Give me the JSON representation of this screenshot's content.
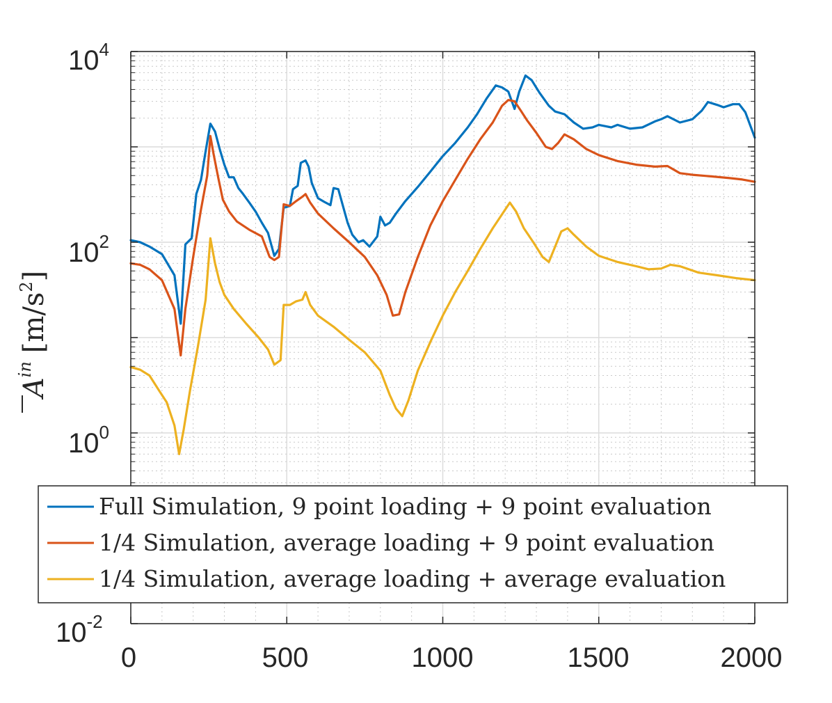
{
  "chart_data": {
    "type": "line",
    "title": "",
    "xlabel": "",
    "ylabel": {
      "symbol": "A",
      "superscript": "in",
      "unit": "[m/s",
      "unit_exponent": "2",
      "unit_close": "]"
    },
    "xlim": [
      0,
      2000
    ],
    "ylim": [
      0.01,
      10000
    ],
    "yscale": "log",
    "grid": true,
    "minor_grid": true,
    "legend_position": "bottom",
    "x_ticks": [
      {
        "value": 0,
        "label": "0"
      },
      {
        "value": 500,
        "label": "500"
      },
      {
        "value": 1000,
        "label": "1000"
      },
      {
        "value": 1500,
        "label": "1500"
      },
      {
        "value": 2000,
        "label": "2000"
      }
    ],
    "y_ticks": [
      {
        "value": 0.01,
        "base": "10",
        "exponent": "-2"
      },
      {
        "value": 1,
        "base": "10",
        "exponent": "0"
      },
      {
        "value": 100,
        "base": "10",
        "exponent": "2"
      },
      {
        "value": 10000,
        "base": "10",
        "exponent": "4"
      }
    ],
    "series": [
      {
        "name": "Full Simulation, 9 point loading + 9 point evaluation",
        "color": "#0072BD",
        "points": [
          [
            0,
            105
          ],
          [
            30,
            100
          ],
          [
            60,
            90
          ],
          [
            100,
            75
          ],
          [
            140,
            45
          ],
          [
            160,
            14
          ],
          [
            175,
            95
          ],
          [
            195,
            110
          ],
          [
            210,
            320
          ],
          [
            225,
            450
          ],
          [
            240,
            900
          ],
          [
            255,
            1750
          ],
          [
            270,
            1450
          ],
          [
            285,
            950
          ],
          [
            300,
            650
          ],
          [
            315,
            480
          ],
          [
            330,
            480
          ],
          [
            345,
            370
          ],
          [
            360,
            320
          ],
          [
            380,
            260
          ],
          [
            400,
            210
          ],
          [
            420,
            160
          ],
          [
            440,
            125
          ],
          [
            460,
            72
          ],
          [
            475,
            85
          ],
          [
            490,
            230
          ],
          [
            510,
            240
          ],
          [
            520,
            360
          ],
          [
            535,
            390
          ],
          [
            545,
            680
          ],
          [
            560,
            720
          ],
          [
            570,
            620
          ],
          [
            580,
            420
          ],
          [
            600,
            290
          ],
          [
            620,
            265
          ],
          [
            640,
            245
          ],
          [
            650,
            370
          ],
          [
            665,
            360
          ],
          [
            680,
            240
          ],
          [
            695,
            160
          ],
          [
            710,
            120
          ],
          [
            730,
            100
          ],
          [
            745,
            105
          ],
          [
            765,
            90
          ],
          [
            790,
            115
          ],
          [
            800,
            185
          ],
          [
            815,
            150
          ],
          [
            830,
            160
          ],
          [
            850,
            200
          ],
          [
            880,
            270
          ],
          [
            920,
            380
          ],
          [
            960,
            550
          ],
          [
            1000,
            800
          ],
          [
            1040,
            1100
          ],
          [
            1080,
            1600
          ],
          [
            1110,
            2200
          ],
          [
            1140,
            3200
          ],
          [
            1170,
            4400
          ],
          [
            1190,
            4200
          ],
          [
            1210,
            3800
          ],
          [
            1230,
            2500
          ],
          [
            1245,
            3800
          ],
          [
            1265,
            5600
          ],
          [
            1285,
            5000
          ],
          [
            1310,
            3700
          ],
          [
            1340,
            2700
          ],
          [
            1360,
            2350
          ],
          [
            1390,
            2200
          ],
          [
            1420,
            1800
          ],
          [
            1450,
            1550
          ],
          [
            1480,
            1600
          ],
          [
            1500,
            1700
          ],
          [
            1520,
            1650
          ],
          [
            1540,
            1600
          ],
          [
            1560,
            1700
          ],
          [
            1600,
            1550
          ],
          [
            1640,
            1600
          ],
          [
            1680,
            1850
          ],
          [
            1700,
            1950
          ],
          [
            1720,
            2100
          ],
          [
            1760,
            1800
          ],
          [
            1800,
            1950
          ],
          [
            1830,
            2400
          ],
          [
            1850,
            2950
          ],
          [
            1880,
            2750
          ],
          [
            1900,
            2600
          ],
          [
            1930,
            2800
          ],
          [
            1950,
            2800
          ],
          [
            1970,
            2300
          ],
          [
            2000,
            1250
          ]
        ]
      },
      {
        "name": "1/4 Simulation, average loading + 9 point evaluation",
        "color": "#D95319",
        "points": [
          [
            0,
            60
          ],
          [
            30,
            58
          ],
          [
            60,
            52
          ],
          [
            100,
            40
          ],
          [
            140,
            20
          ],
          [
            160,
            6.5
          ],
          [
            175,
            20
          ],
          [
            200,
            70
          ],
          [
            225,
            220
          ],
          [
            245,
            500
          ],
          [
            255,
            1300
          ],
          [
            265,
            850
          ],
          [
            280,
            480
          ],
          [
            295,
            280
          ],
          [
            315,
            210
          ],
          [
            340,
            165
          ],
          [
            380,
            135
          ],
          [
            420,
            115
          ],
          [
            445,
            70
          ],
          [
            460,
            65
          ],
          [
            475,
            70
          ],
          [
            490,
            250
          ],
          [
            510,
            240
          ],
          [
            530,
            270
          ],
          [
            550,
            300
          ],
          [
            560,
            320
          ],
          [
            575,
            260
          ],
          [
            600,
            200
          ],
          [
            650,
            140
          ],
          [
            700,
            100
          ],
          [
            750,
            70
          ],
          [
            790,
            45
          ],
          [
            820,
            28
          ],
          [
            840,
            17
          ],
          [
            860,
            17.5
          ],
          [
            880,
            30
          ],
          [
            920,
            70
          ],
          [
            960,
            150
          ],
          [
            1000,
            270
          ],
          [
            1040,
            450
          ],
          [
            1080,
            750
          ],
          [
            1120,
            1200
          ],
          [
            1160,
            1800
          ],
          [
            1190,
            2700
          ],
          [
            1210,
            3100
          ],
          [
            1230,
            3000
          ],
          [
            1250,
            2400
          ],
          [
            1270,
            1900
          ],
          [
            1300,
            1400
          ],
          [
            1330,
            1000
          ],
          [
            1350,
            950
          ],
          [
            1370,
            1100
          ],
          [
            1390,
            1350
          ],
          [
            1420,
            1200
          ],
          [
            1460,
            950
          ],
          [
            1500,
            820
          ],
          [
            1560,
            710
          ],
          [
            1620,
            650
          ],
          [
            1680,
            620
          ],
          [
            1720,
            630
          ],
          [
            1760,
            530
          ],
          [
            1800,
            510
          ],
          [
            1860,
            490
          ],
          [
            1920,
            470
          ],
          [
            1960,
            455
          ],
          [
            2000,
            430
          ]
        ]
      },
      {
        "name": "1/4 Simulation, average loading + average evaluation",
        "color": "#EDB120",
        "points": [
          [
            0,
            4.9
          ],
          [
            30,
            4.6
          ],
          [
            60,
            4
          ],
          [
            90,
            2.8
          ],
          [
            115,
            2.1
          ],
          [
            140,
            1.2
          ],
          [
            155,
            0.6
          ],
          [
            170,
            1.1
          ],
          [
            190,
            2.8
          ],
          [
            215,
            8
          ],
          [
            240,
            25
          ],
          [
            255,
            110
          ],
          [
            270,
            60
          ],
          [
            285,
            38
          ],
          [
            300,
            28
          ],
          [
            330,
            20
          ],
          [
            370,
            14
          ],
          [
            410,
            10
          ],
          [
            440,
            7.5
          ],
          [
            460,
            5.2
          ],
          [
            480,
            5.8
          ],
          [
            490,
            22
          ],
          [
            510,
            22
          ],
          [
            530,
            24
          ],
          [
            550,
            25
          ],
          [
            560,
            30
          ],
          [
            575,
            22
          ],
          [
            600,
            17
          ],
          [
            650,
            13
          ],
          [
            700,
            9.5
          ],
          [
            750,
            7
          ],
          [
            800,
            4.5
          ],
          [
            830,
            2.5
          ],
          [
            850,
            1.8
          ],
          [
            870,
            1.5
          ],
          [
            890,
            2.2
          ],
          [
            920,
            4.5
          ],
          [
            960,
            9
          ],
          [
            1000,
            17
          ],
          [
            1040,
            30
          ],
          [
            1080,
            50
          ],
          [
            1120,
            85
          ],
          [
            1160,
            140
          ],
          [
            1200,
            220
          ],
          [
            1215,
            260
          ],
          [
            1235,
            210
          ],
          [
            1260,
            140
          ],
          [
            1290,
            100
          ],
          [
            1320,
            70
          ],
          [
            1340,
            62
          ],
          [
            1360,
            90
          ],
          [
            1380,
            130
          ],
          [
            1400,
            140
          ],
          [
            1420,
            120
          ],
          [
            1460,
            90
          ],
          [
            1500,
            72
          ],
          [
            1560,
            62
          ],
          [
            1620,
            56
          ],
          [
            1660,
            52
          ],
          [
            1700,
            53
          ],
          [
            1730,
            58
          ],
          [
            1760,
            56
          ],
          [
            1820,
            48
          ],
          [
            1880,
            45
          ],
          [
            1940,
            42
          ],
          [
            2000,
            40
          ]
        ]
      }
    ]
  }
}
